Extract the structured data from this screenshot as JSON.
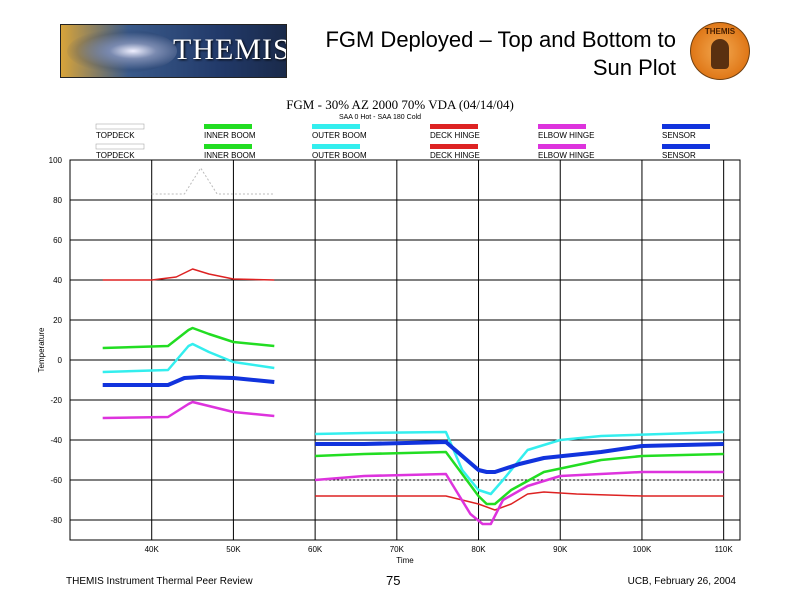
{
  "slide": {
    "logo_text": "THEMIS",
    "title": "FGM Deployed – Top and Bottom to Sun Plot",
    "badge_text": "THEMIS",
    "footer_left": "THEMIS Instrument Thermal Peer Review",
    "footer_center": "75",
    "footer_right": "UCB, February 26, 2004"
  },
  "chart_data": {
    "type": "line",
    "title": "FGM - 30% AZ 2000 70% VDA (04/14/04)",
    "subtitle": "SAA 0 Hot - SAA 180 Cold",
    "xlabel": "Time",
    "ylabel": "Temperature",
    "xlim": [
      30000,
      112000
    ],
    "ylim": [
      -90,
      100
    ],
    "x_ticks": [
      40000,
      50000,
      60000,
      70000,
      80000,
      90000,
      100000,
      110000
    ],
    "x_tick_labels": [
      "40K",
      "50K",
      "60K",
      "70K",
      "80K",
      "90K",
      "100K",
      "110K"
    ],
    "y_ticks": [
      100,
      80,
      60,
      40,
      20,
      0,
      -20,
      -40,
      -60,
      -80
    ],
    "y_tick_labels": [
      "100",
      "80",
      "60",
      "40",
      "20",
      "0",
      "-20",
      "-40",
      "-60",
      "-80"
    ],
    "grid": true,
    "legend_position": "top",
    "series": [
      {
        "name": "TOPDECK",
        "color": "#ffffff",
        "width": 1,
        "x": [
          40000,
          44000,
          46000,
          48000,
          50000,
          55000
        ],
        "y": [
          83,
          83,
          96,
          83,
          83,
          83
        ]
      },
      {
        "name": "INNER BOOM",
        "color": "#22dd22",
        "width": 2.5,
        "x": [
          34000,
          42000,
          44500,
          45000,
          47000,
          50000,
          55000
        ],
        "y": [
          6,
          7,
          15,
          16,
          13,
          9,
          7
        ]
      },
      {
        "name": "OUTER BOOM",
        "color": "#33eeee",
        "width": 2.5,
        "x": [
          34000,
          42000,
          44500,
          45000,
          47000,
          50000,
          55000
        ],
        "y": [
          -6,
          -5,
          7,
          8,
          4,
          -1,
          -4
        ]
      },
      {
        "name": "DECK HINGE",
        "color": "#dd2222",
        "width": 1.5,
        "x": [
          34000,
          40000,
          43000,
          45000,
          47000,
          50000,
          55000
        ],
        "y": [
          40,
          40,
          41.5,
          45.5,
          43,
          40.5,
          40
        ]
      },
      {
        "name": "ELBOW HINGE",
        "color": "#dd33dd",
        "width": 2.5,
        "x": [
          34000,
          42000,
          44500,
          45000,
          47000,
          50000,
          55000
        ],
        "y": [
          -29,
          -28.5,
          -22,
          -21,
          -23,
          -26,
          -28
        ]
      },
      {
        "name": "SENSOR",
        "color": "#1133dd",
        "width": 4,
        "x": [
          34000,
          42000,
          44000,
          46000,
          50000,
          55000
        ],
        "y": [
          -12.5,
          -12.5,
          -9,
          -8.5,
          -9,
          -11
        ]
      },
      {
        "name": "TOPDECK",
        "color": "#ffffff",
        "width": 1,
        "x": [
          60000,
          110000
        ],
        "y": [
          -60,
          -60
        ]
      },
      {
        "name": "INNER BOOM",
        "color": "#22dd22",
        "width": 2.5,
        "x": [
          60000,
          66000,
          76000,
          80000,
          81000,
          82000,
          84000,
          88000,
          95000,
          100000,
          110000
        ],
        "y": [
          -48,
          -47,
          -46,
          -68,
          -72,
          -72,
          -65,
          -56,
          -50,
          -48,
          -47
        ]
      },
      {
        "name": "OUTER BOOM",
        "color": "#33eeee",
        "width": 2.5,
        "x": [
          60000,
          66000,
          76000,
          78000,
          80000,
          81500,
          83000,
          86000,
          90000,
          95000,
          110000
        ],
        "y": [
          -37,
          -36.5,
          -36,
          -55,
          -65,
          -67,
          -60,
          -45,
          -40,
          -38,
          -36
        ]
      },
      {
        "name": "DECK HINGE",
        "color": "#dd2222",
        "width": 1.5,
        "x": [
          60000,
          66000,
          76000,
          80000,
          82000,
          84000,
          86000,
          88000,
          92000,
          100000,
          110000
        ],
        "y": [
          -68,
          -68,
          -68,
          -72,
          -75,
          -72,
          -67,
          -66,
          -67,
          -68,
          -68
        ]
      },
      {
        "name": "ELBOW HINGE",
        "color": "#dd33dd",
        "width": 2.5,
        "x": [
          60000,
          66000,
          76000,
          79000,
          80500,
          81500,
          83000,
          86000,
          90000,
          100000,
          110000
        ],
        "y": [
          -60,
          -58,
          -57,
          -77,
          -82,
          -82,
          -70,
          -63,
          -58,
          -56,
          -56
        ]
      },
      {
        "name": "SENSOR",
        "color": "#1133dd",
        "width": 4,
        "x": [
          60000,
          66000,
          76000,
          80000,
          81000,
          82000,
          85000,
          88000,
          95000,
          100000,
          110000
        ],
        "y": [
          -42,
          -42,
          -41,
          -55,
          -56,
          -56,
          -52,
          -49,
          -46,
          -43,
          -42
        ]
      }
    ],
    "legend": {
      "rows": [
        [
          {
            "label": "TOPDECK",
            "color": "#ffffff"
          },
          {
            "label": "INNER BOOM",
            "color": "#22dd22"
          },
          {
            "label": "OUTER BOOM",
            "color": "#33eeee"
          },
          {
            "label": "DECK HINGE",
            "color": "#dd2222"
          },
          {
            "label": "ELBOW HINGE",
            "color": "#dd33dd"
          },
          {
            "label": "SENSOR",
            "color": "#1133dd"
          }
        ],
        [
          {
            "label": "TOPDECK",
            "color": "#ffffff"
          },
          {
            "label": "INNER BOOM",
            "color": "#22dd22"
          },
          {
            "label": "OUTER BOOM",
            "color": "#33eeee"
          },
          {
            "label": "DECK HINGE",
            "color": "#dd2222"
          },
          {
            "label": "ELBOW HINGE",
            "color": "#dd33dd"
          },
          {
            "label": "SENSOR",
            "color": "#1133dd"
          }
        ]
      ]
    }
  }
}
